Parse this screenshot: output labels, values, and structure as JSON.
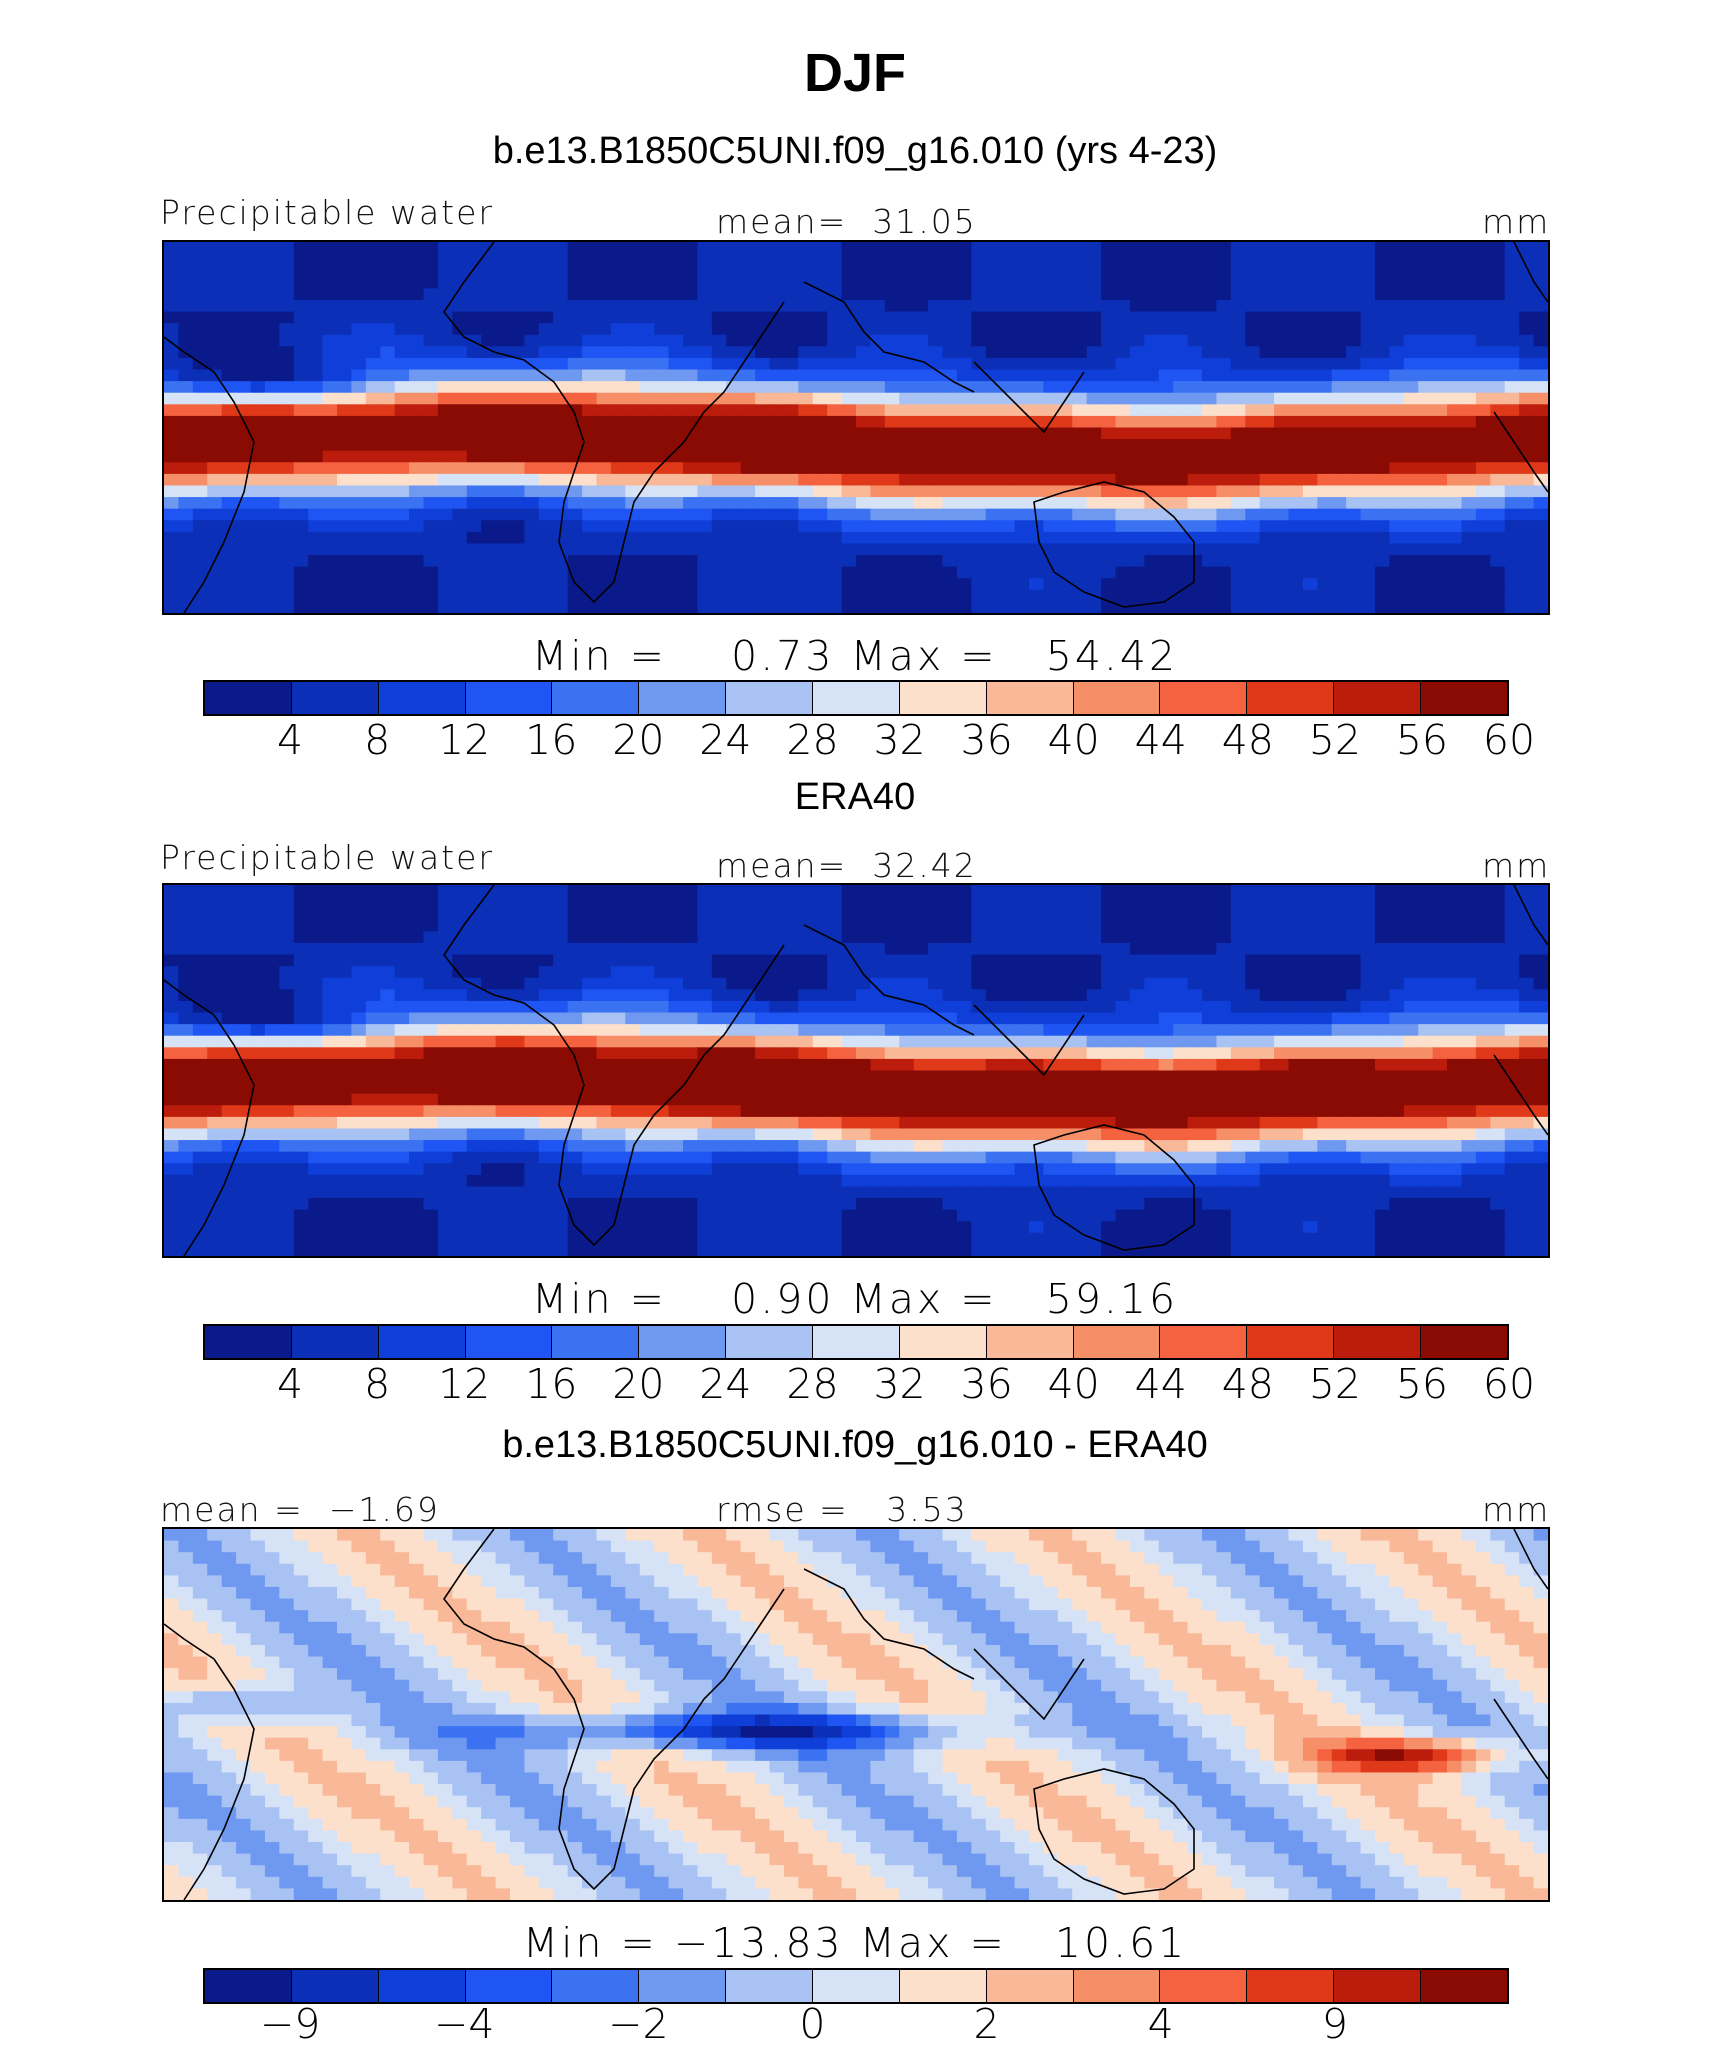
{
  "title": "DJF",
  "palettes": {
    "absolute": [
      "#0a1a8a",
      "#0c2fb8",
      "#0f3fd8",
      "#1f55f2",
      "#3b72f2",
      "#6f99f0",
      "#a9c2f4",
      "#d6e3f7",
      "#fde0cc",
      "#f9b898",
      "#f68f68",
      "#f4623f",
      "#e0391a",
      "#bb1c0c",
      "#8a0a04"
    ],
    "difference": [
      "#0a1a8a",
      "#0c2fb8",
      "#0f3fd8",
      "#1f55f2",
      "#3b72f2",
      "#6f99f0",
      "#a9c2f4",
      "#d6e3f7",
      "#fde0cc",
      "#f9b898",
      "#f68f68",
      "#f4623f",
      "#e0391a",
      "#bb1c0c",
      "#8a0a04"
    ]
  },
  "panels": [
    {
      "subtitle": "b.e13.B1850C5UNI.f09_g16.010 (yrs 4-23)",
      "left_label": "Precipitable water",
      "center_label": "mean=  31.05",
      "right_label": "mm",
      "stats": "Min =    0.73 Max =   54.42",
      "ticks": [
        "4",
        "8",
        "12",
        "16",
        "20",
        "24",
        "28",
        "32",
        "36",
        "40",
        "44",
        "48",
        "52",
        "56",
        "60"
      ],
      "field": "model"
    },
    {
      "subtitle": "ERA40",
      "left_label": "Precipitable water",
      "center_label": "mean=  32.42",
      "right_label": "mm",
      "stats": "Min =    0.90 Max =   59.16",
      "ticks": [
        "4",
        "8",
        "12",
        "16",
        "20",
        "24",
        "28",
        "32",
        "36",
        "40",
        "44",
        "48",
        "52",
        "56",
        "60"
      ],
      "field": "obs"
    },
    {
      "subtitle": "b.e13.B1850C5UNI.f09_g16.010 - ERA40",
      "left_label": "mean =  −1.69",
      "center_label": "rmse =   3.53",
      "right_label": "mm",
      "stats": "Min = −13.83 Max =   10.61",
      "ticks": [
        "−9",
        "",
        "−4",
        "",
        "−2",
        "",
        "0",
        "",
        "2",
        "",
        "4",
        "",
        "9",
        ""
      ],
      "field": "diff"
    }
  ]
}
